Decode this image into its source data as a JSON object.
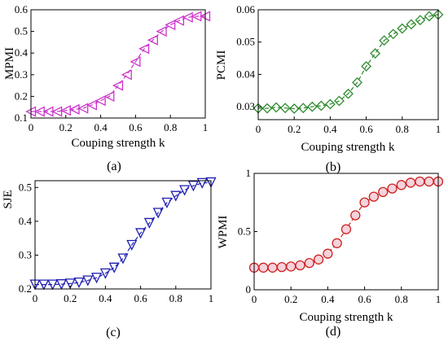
{
  "chart_data": [
    {
      "type": "line",
      "caption": "(a)",
      "xlabel": "Couping strength k",
      "ylabel": "MPMI",
      "xlim": [
        0,
        1
      ],
      "ylim": [
        0.1,
        0.6
      ],
      "xticks": [
        "0",
        "0.2",
        "0.4",
        "0.6",
        "0.8",
        "1"
      ],
      "yticks": [
        "0.1",
        "0.2",
        "0.3",
        "0.4",
        "0.5",
        "0.6"
      ],
      "marker": "triangle-left",
      "color": "#cc33cc",
      "series": [
        {
          "x": [
            0,
            0.05,
            0.1,
            0.15,
            0.2,
            0.25,
            0.3,
            0.35,
            0.4,
            0.45,
            0.5,
            0.55,
            0.6,
            0.65,
            0.7,
            0.75,
            0.8,
            0.85,
            0.9,
            0.95,
            1.0
          ],
          "y": [
            0.13,
            0.13,
            0.13,
            0.13,
            0.135,
            0.14,
            0.145,
            0.16,
            0.18,
            0.2,
            0.25,
            0.3,
            0.36,
            0.42,
            0.46,
            0.5,
            0.53,
            0.55,
            0.565,
            0.57,
            0.57
          ]
        }
      ]
    },
    {
      "type": "line",
      "caption": "(b)",
      "xlabel": "Couping strength k",
      "ylabel": "PCMI",
      "xlim": [
        0,
        1
      ],
      "ylim": [
        0.026,
        0.06
      ],
      "xticks": [
        "0",
        "0.2",
        "0.4",
        "0.6",
        "0.8",
        "1"
      ],
      "yticks": [
        "0.03",
        "0.04",
        "0.05",
        "0.06"
      ],
      "marker": "diamond",
      "color": "#2e8b2e",
      "series": [
        {
          "x": [
            0,
            0.05,
            0.1,
            0.15,
            0.2,
            0.25,
            0.3,
            0.35,
            0.4,
            0.45,
            0.5,
            0.55,
            0.6,
            0.65,
            0.7,
            0.75,
            0.8,
            0.85,
            0.9,
            0.95,
            1.0
          ],
          "y": [
            0.0295,
            0.0295,
            0.0298,
            0.0296,
            0.0294,
            0.0296,
            0.03,
            0.0303,
            0.0308,
            0.0318,
            0.034,
            0.0375,
            0.0425,
            0.0465,
            0.0505,
            0.0525,
            0.0542,
            0.0555,
            0.0568,
            0.058,
            0.0585
          ]
        }
      ]
    },
    {
      "type": "line",
      "caption": "(c)",
      "xlabel": "",
      "ylabel": "SJE",
      "xlim": [
        0,
        1
      ],
      "ylim": [
        0.2,
        0.52
      ],
      "xticks": [
        "0",
        "0.2",
        "0.4",
        "0.6",
        "0.8",
        "1"
      ],
      "yticks": [
        "0.2",
        "0.3",
        "0.4",
        "0.5"
      ],
      "marker": "triangle-down",
      "color": "#1f1fb4",
      "series": [
        {
          "x": [
            0,
            0.05,
            0.1,
            0.15,
            0.2,
            0.25,
            0.3,
            0.35,
            0.4,
            0.45,
            0.5,
            0.55,
            0.6,
            0.65,
            0.7,
            0.75,
            0.8,
            0.85,
            0.9,
            0.95,
            1.0
          ],
          "y": [
            0.213,
            0.213,
            0.213,
            0.214,
            0.216,
            0.219,
            0.225,
            0.233,
            0.246,
            0.263,
            0.29,
            0.33,
            0.365,
            0.395,
            0.425,
            0.455,
            0.475,
            0.492,
            0.505,
            0.513,
            0.515
          ]
        }
      ]
    },
    {
      "type": "line",
      "caption": "(d)",
      "xlabel": "Couping strength k",
      "ylabel": "WPMI",
      "xlim": [
        0,
        1
      ],
      "ylim": [
        0,
        1
      ],
      "xticks": [
        "0",
        "0.2",
        "0.4",
        "0.6",
        "0.8",
        "1"
      ],
      "yticks": [
        "0",
        "0.5",
        "1"
      ],
      "marker": "circle",
      "color": "#cc2222",
      "series": [
        {
          "x": [
            0,
            0.05,
            0.1,
            0.15,
            0.2,
            0.25,
            0.3,
            0.35,
            0.4,
            0.45,
            0.5,
            0.55,
            0.6,
            0.65,
            0.7,
            0.75,
            0.8,
            0.85,
            0.9,
            0.95,
            1.0
          ],
          "y": [
            0.19,
            0.19,
            0.19,
            0.195,
            0.2,
            0.21,
            0.23,
            0.26,
            0.31,
            0.4,
            0.52,
            0.64,
            0.75,
            0.8,
            0.84,
            0.87,
            0.9,
            0.92,
            0.93,
            0.93,
            0.93
          ]
        }
      ]
    }
  ]
}
